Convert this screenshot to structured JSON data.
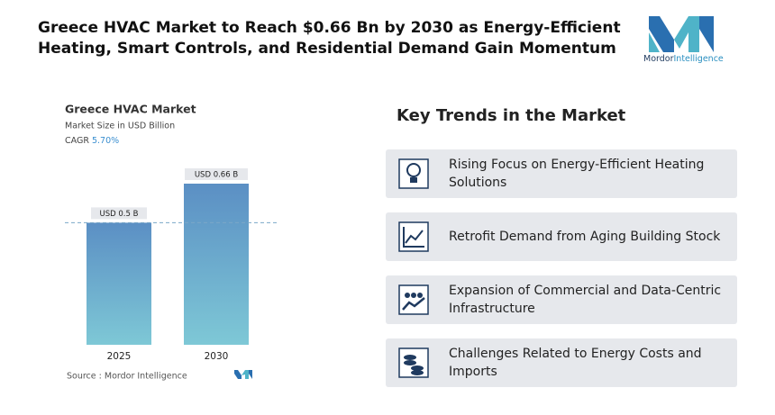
{
  "header": {
    "title": "Greece HVAC Market to Reach $0.66 Bn by 2030 as Energy-Efficient Heating, Smart Controls, and Residential Demand Gain Momentum",
    "logo_brand": "Mordor",
    "logo_suffix": "Intelligence"
  },
  "chart_data": {
    "type": "bar",
    "title": "Greece HVAC Market",
    "subtitle": "Market Size in USD Billion",
    "cagr_label": "CAGR",
    "cagr": "5.70%",
    "categories": [
      "2025",
      "2030"
    ],
    "values": [
      0.5,
      0.66
    ],
    "value_labels": [
      "USD 0.5 B",
      "USD 0.66 B"
    ],
    "color": "#5b9bc4",
    "source": "Source :  Mordor Intelligence"
  },
  "trends": {
    "title": "Key Trends in the Market",
    "items": [
      "Rising Focus on Energy-Efficient Heating Solutions",
      "Retrofit Demand from Aging Building Stock",
      "Expansion of Commercial and Data-Centric Infrastructure",
      "Challenges Related to Energy Costs and Imports"
    ]
  }
}
